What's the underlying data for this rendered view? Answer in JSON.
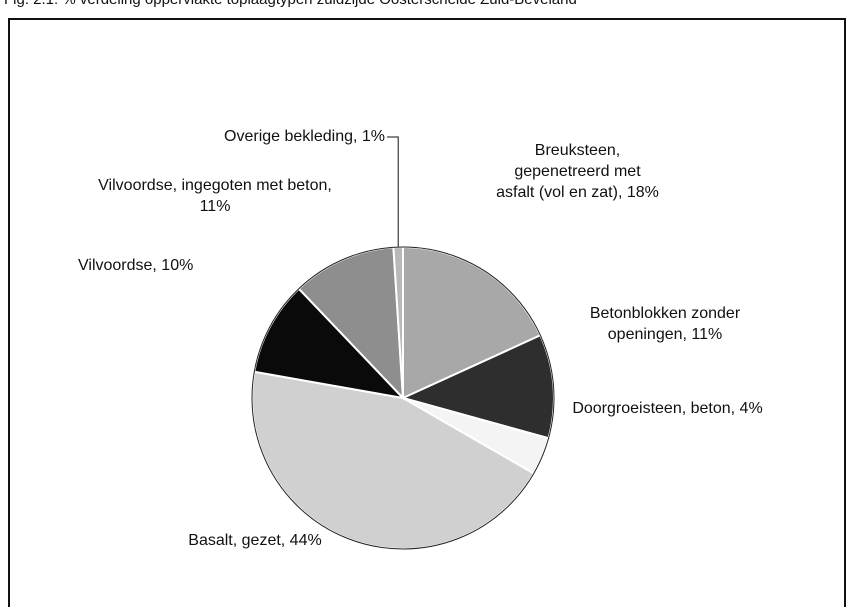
{
  "chart_data": {
    "type": "pie",
    "title": "Fig. 2.1: % verdeling oppervlakte toplaagtypen zuidzijde Oosterschelde Zuid-Beveland",
    "labels": [
      "Breuksteen, gepenetreerd met asfalt (vol en zat), 18%",
      "Betonblokken zonder openingen, 11%",
      "Doorgroeisteen, beton, 4%",
      "Basalt, gezet, 44%",
      "Vilvoordse, 10%",
      "Vilvoordse, ingegoten met beton, 11%",
      "Overige bekleding, 1%"
    ],
    "values": [
      18,
      11,
      4,
      44,
      10,
      11,
      1
    ],
    "colors": [
      "#a8a8a8",
      "#2e2e2e",
      "#f4f4f4",
      "#d0d0d0",
      "#0a0a0a",
      "#8e8e8e",
      "#b8b8b8"
    ]
  }
}
